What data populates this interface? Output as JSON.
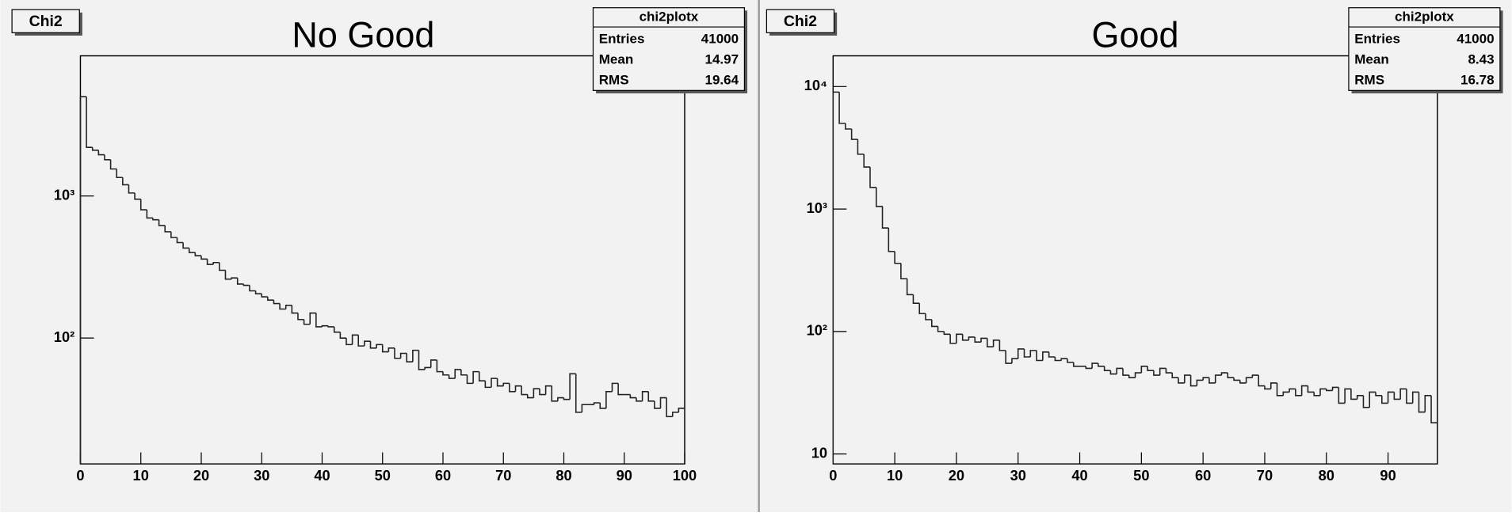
{
  "chart_data": [
    {
      "type": "histogram",
      "tag": "Chi2",
      "title": "No Good",
      "log_y": true,
      "color": "#222222",
      "stats": {
        "title": "chi2plotx",
        "rows": [
          [
            "Entries",
            41000
          ],
          [
            "Mean",
            14.97
          ],
          [
            "RMS",
            19.64
          ]
        ]
      },
      "bins": [
        0,
        1,
        2,
        3,
        4,
        5,
        6,
        7,
        8,
        9,
        10,
        11,
        12,
        13,
        14,
        15,
        16,
        17,
        18,
        19,
        20,
        21,
        22,
        23,
        24,
        25,
        26,
        27,
        28,
        29,
        30,
        31,
        32,
        33,
        34,
        35,
        36,
        37,
        38,
        39,
        40,
        41,
        42,
        43,
        44,
        45,
        46,
        47,
        48,
        49,
        50,
        51,
        52,
        53,
        54,
        55,
        56,
        57,
        58,
        59,
        60,
        61,
        62,
        63,
        64,
        65,
        66,
        67,
        68,
        69,
        70,
        71,
        72,
        73,
        74,
        75,
        76,
        77,
        78,
        79,
        80,
        81,
        82,
        83,
        84,
        85,
        86,
        87,
        88,
        89,
        90,
        91,
        92,
        93,
        94,
        95,
        96,
        97,
        98,
        99,
        100
      ],
      "counts": [
        5000,
        2200,
        2100,
        1950,
        1800,
        1550,
        1350,
        1200,
        1050,
        950,
        800,
        700,
        680,
        620,
        560,
        510,
        470,
        430,
        400,
        380,
        360,
        330,
        340,
        300,
        260,
        265,
        240,
        235,
        215,
        205,
        195,
        185,
        175,
        160,
        170,
        150,
        135,
        125,
        150,
        120,
        122,
        120,
        110,
        100,
        90,
        105,
        88,
        95,
        85,
        90,
        80,
        85,
        72,
        78,
        68,
        82,
        60,
        62,
        70,
        58,
        55,
        52,
        60,
        55,
        48,
        58,
        50,
        45,
        52,
        46,
        48,
        42,
        46,
        40,
        38,
        44,
        40,
        46,
        36,
        38,
        37,
        56,
        30,
        34,
        34,
        35,
        32,
        42,
        48,
        40,
        40,
        38,
        36,
        42,
        36,
        32,
        38,
        28,
        30,
        32
      ],
      "xlim": [
        0,
        100
      ],
      "xticks": [
        0,
        10,
        20,
        30,
        40,
        50,
        60,
        70,
        80,
        90,
        100
      ],
      "ylim": [
        13,
        9700
      ],
      "yticks": [
        {
          "value": 100,
          "label": "10²"
        },
        {
          "value": 1000,
          "label": "10³"
        }
      ]
    },
    {
      "type": "histogram",
      "tag": "Chi2",
      "title": "Good",
      "log_y": true,
      "color": "#222222",
      "stats": {
        "title": "chi2plotx",
        "rows": [
          [
            "Entries",
            41000
          ],
          [
            "Mean",
            8.43
          ],
          [
            "RMS",
            16.78
          ]
        ]
      },
      "bins": [
        0,
        1,
        2,
        3,
        4,
        5,
        6,
        7,
        8,
        9,
        10,
        11,
        12,
        13,
        14,
        15,
        16,
        17,
        18,
        19,
        20,
        21,
        22,
        23,
        24,
        25,
        26,
        27,
        28,
        29,
        30,
        31,
        32,
        33,
        34,
        35,
        36,
        37,
        38,
        39,
        40,
        41,
        42,
        43,
        44,
        45,
        46,
        47,
        48,
        49,
        50,
        51,
        52,
        53,
        54,
        55,
        56,
        57,
        58,
        59,
        60,
        61,
        62,
        63,
        64,
        65,
        66,
        67,
        68,
        69,
        70,
        71,
        72,
        73,
        74,
        75,
        76,
        77,
        78,
        79,
        80,
        81,
        82,
        83,
        84,
        85,
        86,
        87,
        88,
        89,
        90,
        91,
        92,
        93,
        94,
        95,
        96,
        97,
        98
      ],
      "counts": [
        9000,
        5000,
        4500,
        3700,
        2800,
        2200,
        1500,
        1050,
        700,
        450,
        360,
        270,
        200,
        170,
        140,
        125,
        110,
        100,
        95,
        80,
        95,
        85,
        90,
        82,
        88,
        75,
        85,
        70,
        55,
        60,
        72,
        62,
        70,
        58,
        68,
        62,
        58,
        60,
        56,
        52,
        52,
        50,
        55,
        52,
        48,
        45,
        50,
        44,
        42,
        46,
        52,
        48,
        44,
        50,
        46,
        42,
        38,
        44,
        36,
        40,
        42,
        38,
        44,
        46,
        42,
        40,
        38,
        42,
        44,
        36,
        34,
        38,
        30,
        32,
        34,
        30,
        36,
        32,
        30,
        34,
        33,
        35,
        26,
        34,
        28,
        30,
        24,
        32,
        30,
        26,
        32,
        28,
        34,
        26,
        32,
        22,
        30,
        18
      ],
      "xlim": [
        0,
        98
      ],
      "xticks": [
        0,
        10,
        20,
        30,
        40,
        50,
        60,
        70,
        80,
        90
      ],
      "ylim": [
        8.3,
        17800
      ],
      "yticks": [
        10,
        {
          "value": 100,
          "label": "10²"
        },
        {
          "value": 1000,
          "label": "10³"
        },
        {
          "value": 10000,
          "label": "10⁴"
        }
      ]
    }
  ]
}
